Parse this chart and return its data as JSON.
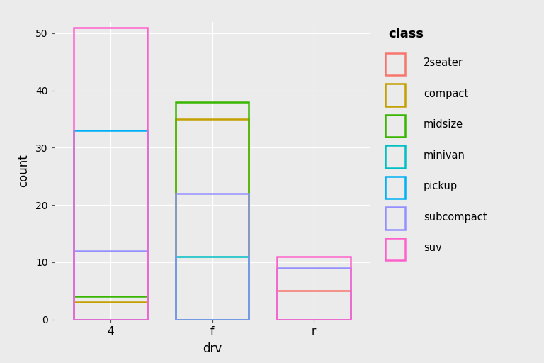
{
  "title": "class",
  "xlabel": "drv",
  "ylabel": "count",
  "drv_categories": [
    "4",
    "f",
    "r"
  ],
  "classes": [
    "2seater",
    "compact",
    "midsize",
    "minivan",
    "pickup",
    "subcompact",
    "suv"
  ],
  "colors": {
    "2seater": "#F8766D",
    "compact": "#C4A000",
    "midsize": "#39B600",
    "minivan": "#00BFC4",
    "pickup": "#00B0F6",
    "subcompact": "#9590FF",
    "suv": "#FF61CC"
  },
  "counts": {
    "4": {
      "2seater": 0,
      "compact": 3,
      "midsize": 4,
      "minivan": 0,
      "pickup": 33,
      "subcompact": 12,
      "suv": 51
    },
    "f": {
      "2seater": 0,
      "compact": 35,
      "midsize": 38,
      "minivan": 11,
      "pickup": 0,
      "subcompact": 22,
      "suv": 0
    },
    "r": {
      "2seater": 5,
      "compact": 0,
      "midsize": 0,
      "minivan": 0,
      "pickup": 0,
      "subcompact": 9,
      "suv": 11
    }
  },
  "ylim": [
    0,
    52
  ],
  "yticks": [
    0,
    10,
    20,
    30,
    40,
    50
  ],
  "bar_width": 0.72,
  "background_color": "#EBEBEB",
  "grid_color": "#FFFFFF",
  "linewidth": 1.8
}
